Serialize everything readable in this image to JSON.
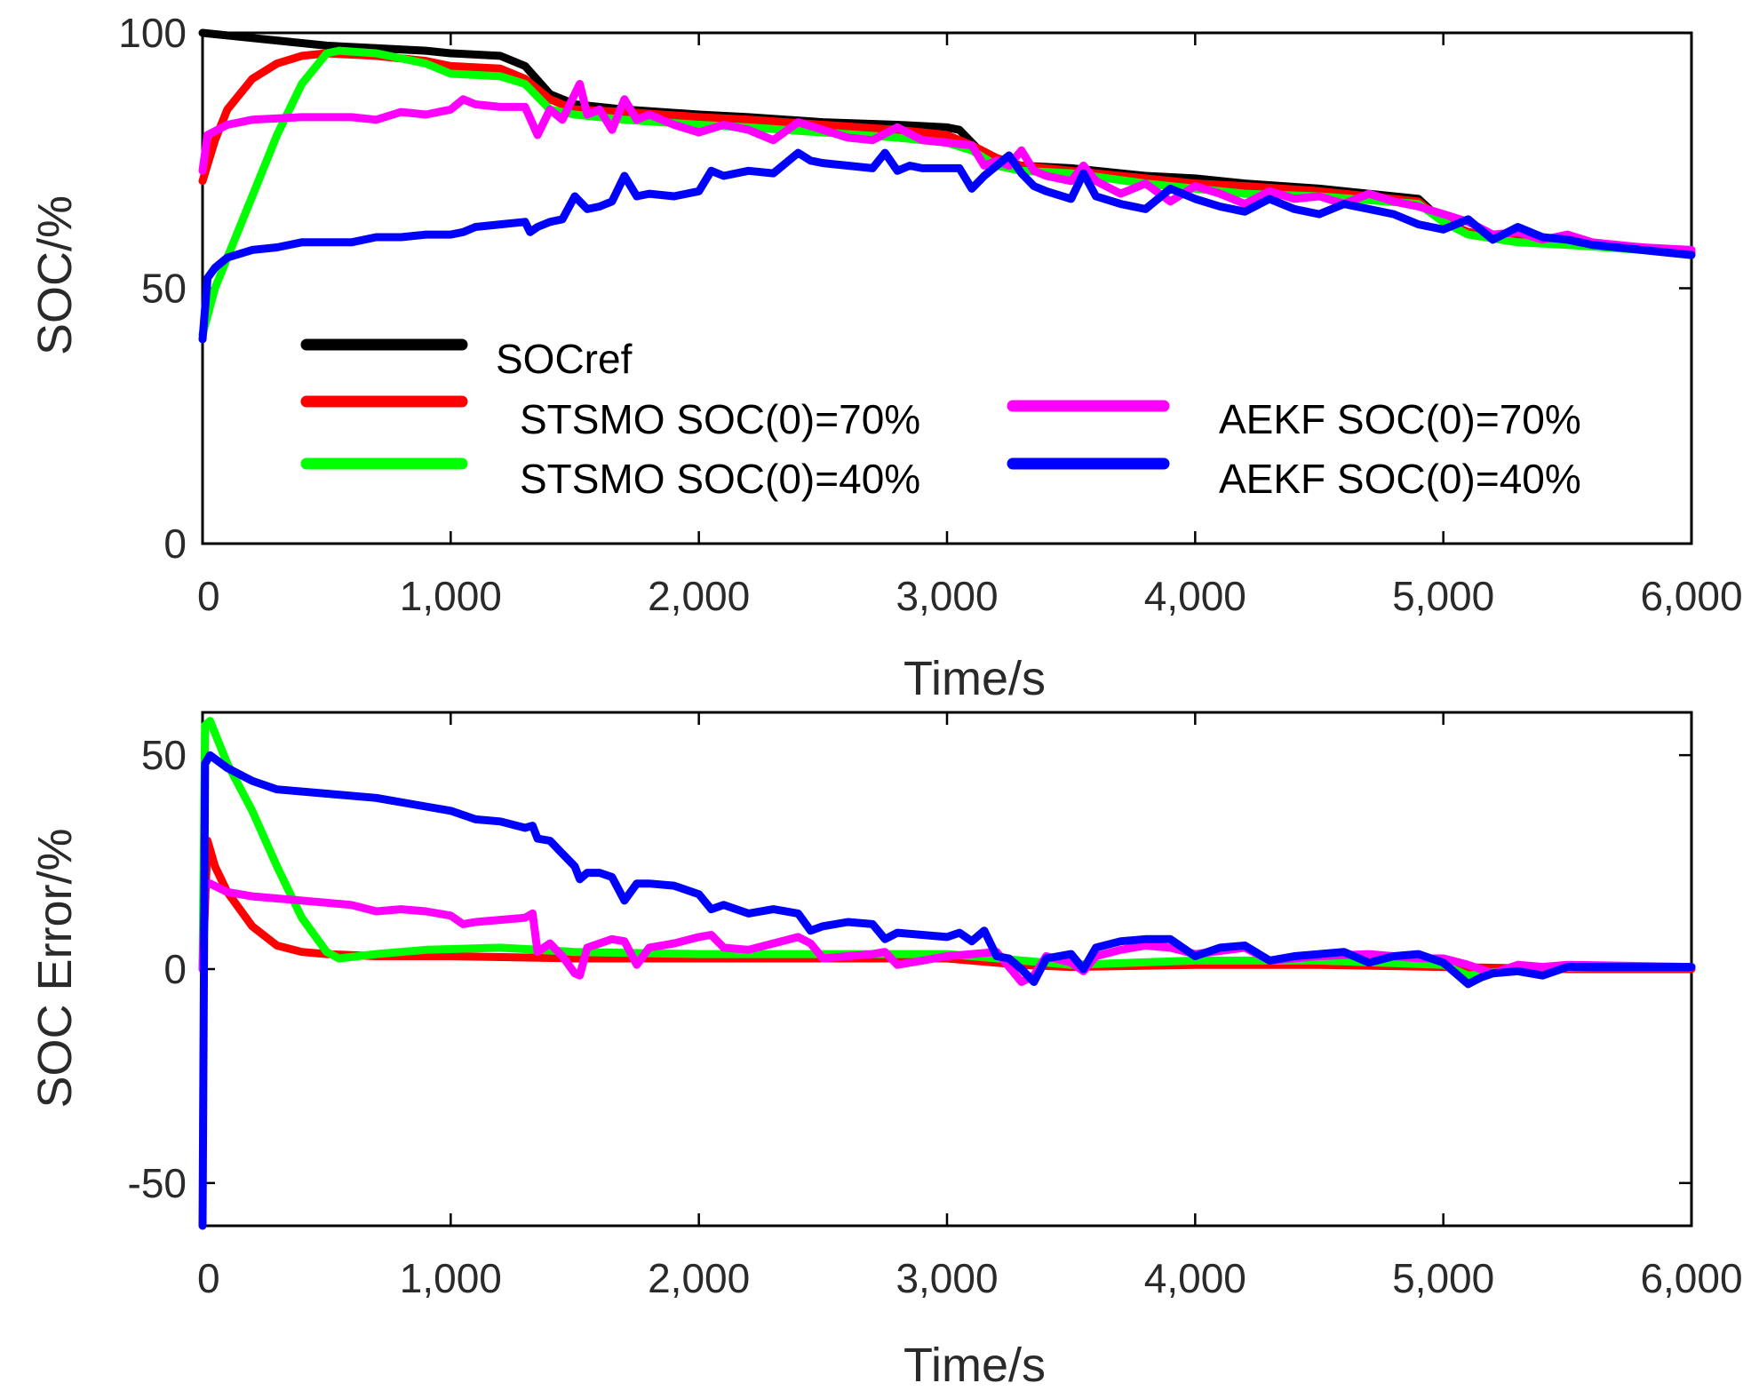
{
  "colors": {
    "SOCref": "#000000",
    "STSMO_70": "#ff0000",
    "STSMO_40": "#00ff00",
    "AEKF_70": "#ff00ff",
    "AEKF_40": "#0000ff"
  },
  "chart_data": [
    {
      "type": "line",
      "title": "",
      "xlabel": "Time/s",
      "ylabel": "SOC/%",
      "xlim": [
        0,
        6000
      ],
      "ylim": [
        0,
        100
      ],
      "xticks": [
        0,
        1000,
        2000,
        3000,
        4000,
        5000,
        6000
      ],
      "xtick_labels": [
        "0",
        "1,000",
        "2,000",
        "3,000",
        "4,000",
        "5,000",
        "6,000"
      ],
      "yticks": [
        0,
        50,
        100
      ],
      "ytick_labels": [
        "0",
        "50",
        "100"
      ],
      "legend": {
        "placement": "lower-left",
        "entries": [
          "SOCref",
          "STSMO SOC(0)=70%",
          "STSMO SOC(0)=40%",
          "AEKF SOC(0)=70%",
          "AEKF SOC(0)=40%"
        ]
      },
      "series": [
        {
          "name": "SOCref",
          "color_key": "SOCref",
          "x": [
            0,
            100,
            200,
            300,
            400,
            500,
            700,
            900,
            1000,
            1200,
            1300,
            1400,
            1500,
            1700,
            2000,
            2200,
            2500,
            2800,
            3000,
            3050,
            3150,
            3200,
            3300,
            3500,
            3800,
            4000,
            4200,
            4500,
            4900,
            5000,
            5100,
            5300,
            5500,
            5800,
            6000
          ],
          "y": [
            100,
            99.5,
            99,
            98.5,
            98,
            97.5,
            97,
            96.5,
            96,
            95.5,
            93.5,
            88,
            86,
            85,
            84,
            83.5,
            82.5,
            82,
            81.5,
            81,
            76,
            74,
            74,
            73.5,
            72,
            71.5,
            70.5,
            69.5,
            67.5,
            63,
            61,
            59.5,
            59,
            58,
            57
          ]
        },
        {
          "name": "STSMO SOC(0)=70%",
          "color_key": "STSMO_70",
          "x": [
            0,
            50,
            100,
            200,
            300,
            400,
            500,
            700,
            900,
            1000,
            1200,
            1300,
            1400,
            1500,
            1700,
            2000,
            2200,
            2500,
            2800,
            3000,
            3100,
            3200,
            3300,
            3500,
            3800,
            4000,
            4200,
            4500,
            4900,
            5000,
            5100,
            5300,
            5500,
            5800,
            6000
          ],
          "y": [
            71,
            79,
            85,
            91,
            94,
            95.5,
            96,
            95.5,
            94.5,
            93.5,
            93,
            91,
            87,
            85,
            84.5,
            83.5,
            83,
            82,
            81,
            80,
            78,
            75.5,
            74,
            73,
            71.5,
            70.5,
            70,
            69,
            67,
            63,
            61,
            59.5,
            58.5,
            58,
            57
          ]
        },
        {
          "name": "STSMO SOC(0)=40%",
          "color_key": "STSMO_40",
          "x": [
            0,
            50,
            100,
            200,
            300,
            400,
            500,
            550,
            700,
            900,
            1000,
            1200,
            1300,
            1400,
            1500,
            1700,
            2000,
            2200,
            2500,
            2800,
            3000,
            3100,
            3200,
            3300,
            3500,
            3800,
            4000,
            4200,
            4500,
            4900,
            5000,
            5100,
            5300,
            5500,
            5800,
            6000
          ],
          "y": [
            41,
            50,
            56,
            68,
            80,
            90,
            96,
            96.5,
            96,
            94,
            92,
            91.5,
            90,
            85,
            84,
            83,
            82,
            81.5,
            80.5,
            79.5,
            78.5,
            77,
            74,
            73,
            72.5,
            70.5,
            69.5,
            68.5,
            68,
            66.5,
            63,
            60.5,
            59,
            58.5,
            57.5,
            56.5
          ]
        },
        {
          "name": "AEKF SOC(0)=70%",
          "color_key": "AEKF_70",
          "x": [
            0,
            20,
            100,
            200,
            400,
            600,
            700,
            800,
            900,
            1000,
            1050,
            1100,
            1200,
            1300,
            1350,
            1400,
            1450,
            1500,
            1520,
            1550,
            1600,
            1650,
            1700,
            1750,
            1800,
            1900,
            2000,
            2100,
            2200,
            2300,
            2400,
            2500,
            2600,
            2700,
            2800,
            2900,
            3000,
            3100,
            3150,
            3200,
            3250,
            3300,
            3350,
            3400,
            3500,
            3550,
            3600,
            3700,
            3800,
            3900,
            4000,
            4100,
            4200,
            4300,
            4400,
            4500,
            4600,
            4700,
            4800,
            4900,
            5000,
            5100,
            5200,
            5300,
            5400,
            5500,
            5600,
            5800,
            6000
          ],
          "y": [
            73,
            80,
            82,
            83,
            83.5,
            83.5,
            83,
            84.5,
            84,
            85,
            87,
            86,
            85.5,
            85.5,
            80,
            85,
            83,
            88,
            90,
            84,
            85,
            81,
            87,
            83,
            84,
            82,
            80.5,
            82,
            81,
            79,
            82.5,
            81,
            79.5,
            79,
            81.5,
            79,
            78.5,
            78,
            74,
            75,
            74,
            77,
            73,
            72,
            71,
            74,
            71,
            68.5,
            70.5,
            67,
            70,
            68.5,
            66.5,
            69,
            67.5,
            68,
            66.5,
            68.5,
            67,
            66,
            64.5,
            63,
            60.5,
            61,
            59.5,
            60.5,
            59,
            58,
            57.5
          ]
        },
        {
          "name": "AEKF SOC(0)=40%",
          "color_key": "AEKF_40",
          "x": [
            0,
            20,
            50,
            100,
            200,
            300,
            400,
            600,
            700,
            800,
            900,
            1000,
            1050,
            1100,
            1200,
            1300,
            1320,
            1350,
            1400,
            1450,
            1500,
            1550,
            1600,
            1650,
            1700,
            1750,
            1800,
            1900,
            2000,
            2050,
            2100,
            2200,
            2300,
            2400,
            2450,
            2500,
            2600,
            2700,
            2750,
            2800,
            2850,
            2900,
            3000,
            3050,
            3100,
            3150,
            3200,
            3250,
            3300,
            3350,
            3400,
            3500,
            3550,
            3600,
            3700,
            3800,
            3900,
            4000,
            4100,
            4200,
            4300,
            4400,
            4500,
            4600,
            4700,
            4800,
            4900,
            5000,
            5100,
            5200,
            5300,
            5400,
            5500,
            5600,
            5800,
            6000
          ],
          "y": [
            40,
            52,
            54,
            56,
            57.5,
            58,
            59,
            59,
            60,
            60,
            60.5,
            60.5,
            61,
            62,
            62.5,
            63,
            61,
            62,
            63,
            63.5,
            68,
            65.5,
            66,
            67,
            72,
            68,
            68.5,
            68,
            69,
            73,
            72,
            73,
            72.5,
            76.5,
            75,
            74.5,
            74,
            73.5,
            76.5,
            73,
            74,
            73.5,
            73.5,
            73.5,
            69.5,
            72,
            74,
            76,
            72.5,
            70,
            69,
            67.5,
            72.5,
            68,
            66.5,
            65.5,
            69.5,
            67.5,
            66,
            65,
            67.5,
            65.5,
            64.5,
            66.5,
            65.5,
            64.5,
            62.5,
            61.5,
            63.5,
            59.5,
            62,
            60,
            59.5,
            58.5,
            57.5,
            56.5
          ]
        }
      ]
    },
    {
      "type": "line",
      "title": "",
      "xlabel": "Time/s",
      "ylabel": "SOC Error/%",
      "xlim": [
        0,
        6000
      ],
      "ylim": [
        -60,
        60
      ],
      "xticks": [
        0,
        1000,
        2000,
        3000,
        4000,
        5000,
        6000
      ],
      "xtick_labels": [
        "0",
        "1,000",
        "2,000",
        "3,000",
        "4,000",
        "5,000",
        "6,000"
      ],
      "yticks": [
        -50,
        0,
        50
      ],
      "ytick_labels": [
        "-50",
        "0",
        "50"
      ],
      "series": [
        {
          "name": "STSMO SOC(0)=70%",
          "color_key": "STSMO_70",
          "x": [
            0,
            20,
            50,
            100,
            200,
            300,
            400,
            500,
            700,
            1000,
            1500,
            2000,
            2500,
            3000,
            3300,
            3500,
            4000,
            4500,
            5000,
            5500,
            6000
          ],
          "y": [
            0,
            30,
            24,
            18,
            10,
            5.5,
            4,
            3.5,
            3,
            3,
            2.5,
            2.5,
            2.5,
            2.5,
            1,
            0.5,
            1,
            1,
            0.5,
            0,
            0
          ]
        },
        {
          "name": "STSMO SOC(0)=40%",
          "color_key": "STSMO_40",
          "x": [
            0,
            10,
            30,
            100,
            200,
            300,
            400,
            500,
            550,
            700,
            900,
            1200,
            1500,
            2000,
            2500,
            3000,
            3300,
            3500,
            4000,
            4500,
            5000,
            5100,
            5300,
            5600,
            6000
          ],
          "y": [
            0,
            57,
            58,
            48,
            37,
            24,
            12,
            4,
            2.5,
            3.5,
            4.5,
            5,
            4,
            3.5,
            3.5,
            3.5,
            2,
            1,
            2,
            2,
            1,
            -1.5,
            0,
            0.5,
            0.5
          ]
        },
        {
          "name": "AEKF SOC(0)=70%",
          "color_key": "AEKF_70",
          "x": [
            0,
            10,
            30,
            100,
            200,
            300,
            500,
            600,
            700,
            800,
            900,
            1000,
            1050,
            1100,
            1200,
            1300,
            1330,
            1350,
            1400,
            1450,
            1500,
            1520,
            1550,
            1600,
            1650,
            1700,
            1750,
            1800,
            1900,
            2000,
            2050,
            2100,
            2200,
            2300,
            2400,
            2450,
            2500,
            2600,
            2700,
            2750,
            2800,
            2900,
            3000,
            3100,
            3200,
            3300,
            3350,
            3400,
            3500,
            3550,
            3600,
            3700,
            3800,
            3900,
            4000,
            4200,
            4300,
            4500,
            4700,
            4900,
            5000,
            5100,
            5200,
            5300,
            5400,
            5500,
            6000
          ],
          "y": [
            0,
            20,
            20,
            18,
            17,
            16.5,
            15.5,
            15,
            13.5,
            14,
            13.5,
            12.5,
            10.5,
            11,
            11.5,
            12,
            13,
            4,
            6,
            3,
            -1,
            -1.5,
            5,
            6,
            7,
            6.5,
            1,
            5,
            6,
            7.5,
            8,
            5,
            4.5,
            6,
            7.5,
            6,
            2.5,
            3,
            3.5,
            4,
            1,
            2,
            3,
            3.5,
            4,
            -3,
            -1.5,
            3,
            1.5,
            -0.5,
            3,
            4.5,
            5.5,
            5,
            3.5,
            5,
            2,
            3,
            3.5,
            2.5,
            2.5,
            1,
            -1,
            1,
            0.5,
            1,
            0.5
          ]
        },
        {
          "name": "AEKF SOC(0)=40%",
          "color_key": "AEKF_40",
          "x": [
            0,
            10,
            30,
            100,
            200,
            300,
            500,
            700,
            900,
            1000,
            1100,
            1200,
            1300,
            1330,
            1350,
            1400,
            1450,
            1500,
            1520,
            1550,
            1600,
            1650,
            1700,
            1750,
            1800,
            1900,
            2000,
            2050,
            2100,
            2200,
            2300,
            2400,
            2450,
            2500,
            2600,
            2700,
            2750,
            2800,
            2900,
            3000,
            3050,
            3100,
            3150,
            3200,
            3250,
            3300,
            3350,
            3400,
            3500,
            3550,
            3600,
            3700,
            3800,
            3900,
            4000,
            4100,
            4200,
            4300,
            4400,
            4500,
            4600,
            4700,
            4800,
            4900,
            5000,
            5100,
            5150,
            5200,
            5300,
            5400,
            5500,
            5600,
            5800,
            6000
          ],
          "y": [
            -60,
            48,
            50,
            47,
            44,
            42,
            41,
            40,
            38,
            37,
            35,
            34.5,
            33,
            33.5,
            30.5,
            30,
            27,
            24,
            21,
            22.5,
            22.5,
            21.5,
            16,
            20,
            20,
            19.5,
            17.5,
            14,
            15,
            13,
            14,
            13,
            9,
            10,
            11,
            10.5,
            7,
            8.5,
            8,
            7.5,
            8.5,
            6.5,
            9,
            3,
            2.5,
            0,
            -3,
            2.5,
            3.5,
            0,
            5,
            6.5,
            7,
            7,
            3,
            5,
            5.5,
            2,
            3,
            3.5,
            4,
            1.5,
            3,
            3.5,
            1.5,
            -3.5,
            -2,
            -1,
            -0.5,
            -1.5,
            0.5,
            0.5,
            0.5,
            0.5
          ]
        }
      ]
    }
  ]
}
